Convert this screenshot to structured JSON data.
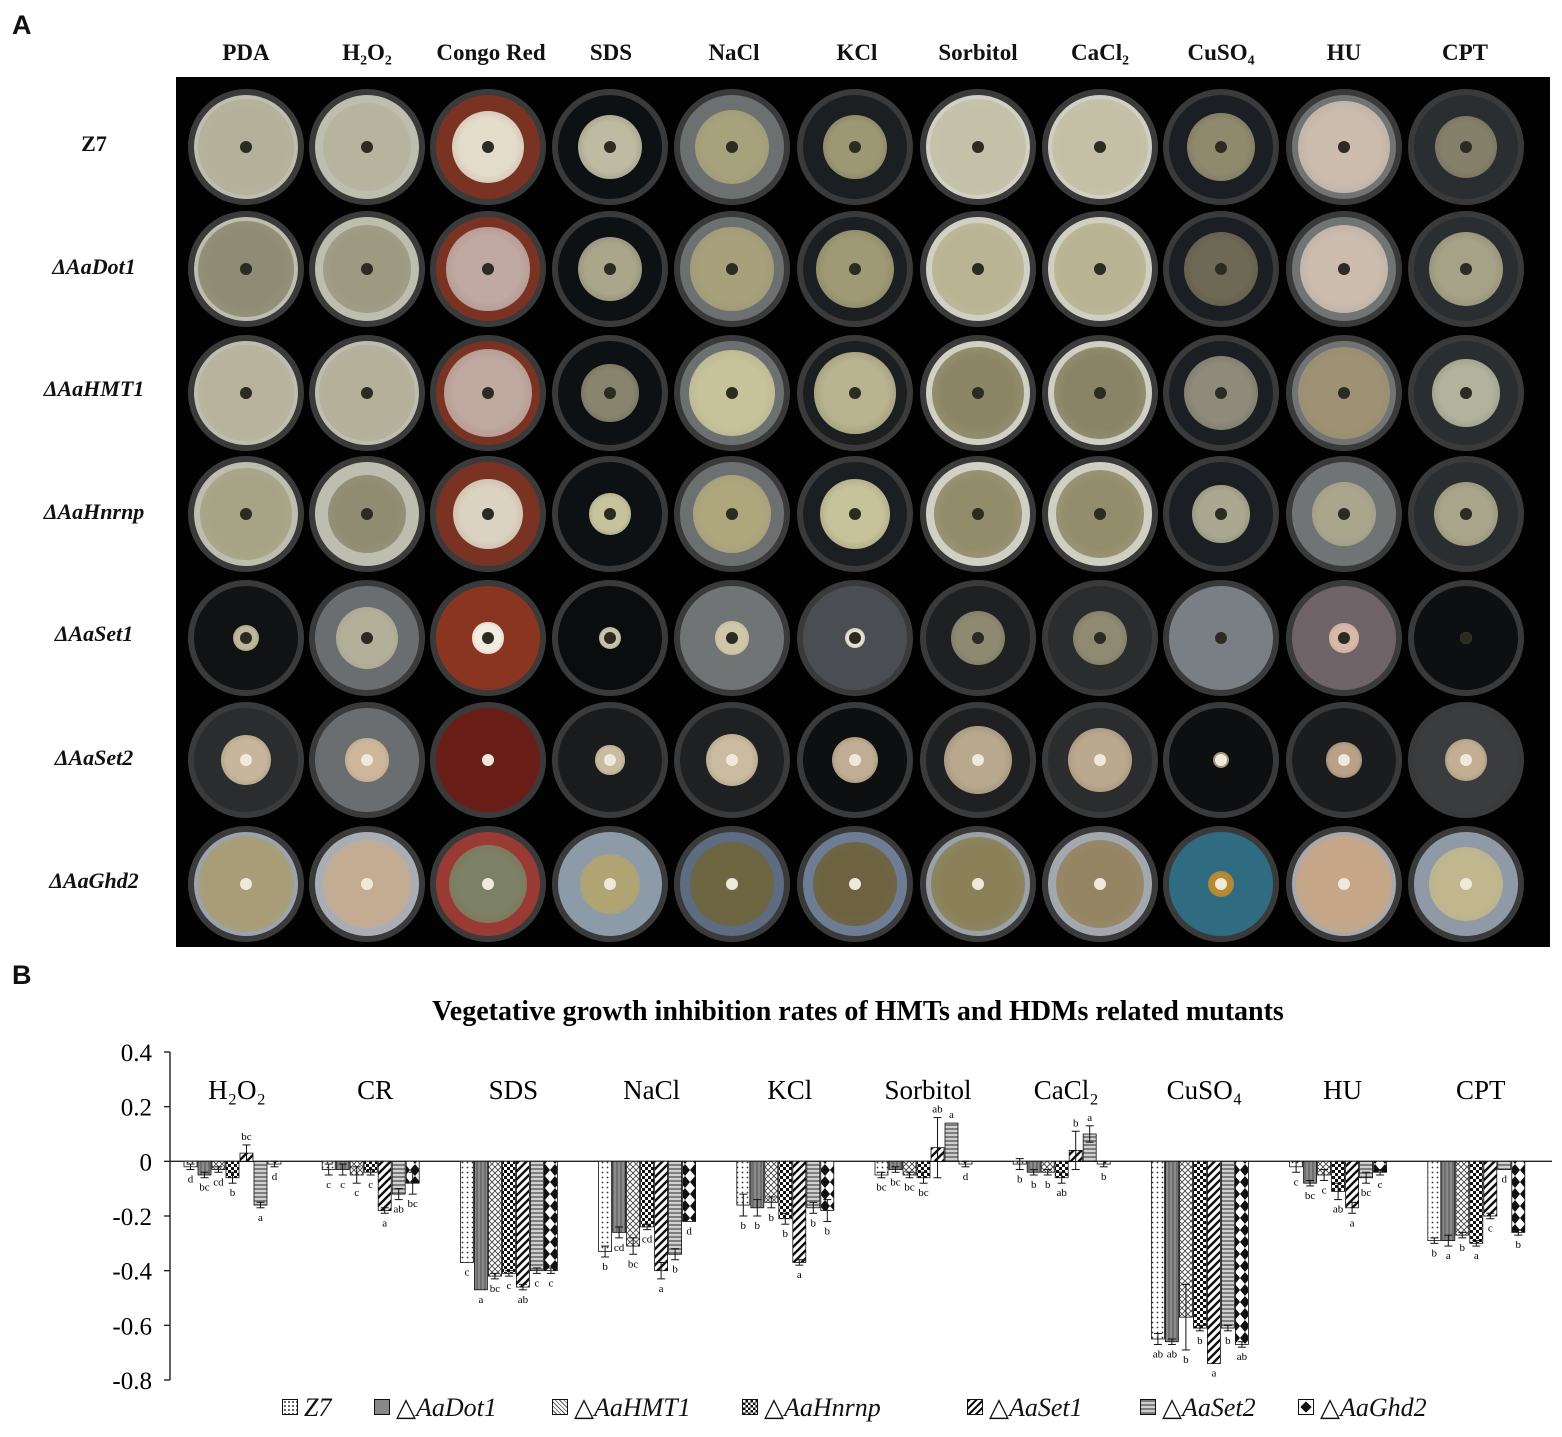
{
  "panelA": {
    "letter": "A",
    "columns": [
      {
        "label": "PDA"
      },
      {
        "label": "H₂O₂"
      },
      {
        "label": "Congo Red"
      },
      {
        "label": "SDS"
      },
      {
        "label": "NaCl"
      },
      {
        "label": "KCl"
      },
      {
        "label": "Sorbitol"
      },
      {
        "label": "CaCl₂"
      },
      {
        "label": "CuSO₄"
      },
      {
        "label": "HU"
      },
      {
        "label": "CPT"
      }
    ],
    "rows": [
      {
        "label": "Z7"
      },
      {
        "label": "ΔAaDot1"
      },
      {
        "label": "ΔAaHMT1"
      },
      {
        "label": "ΔAaHnrnp"
      },
      {
        "label": "ΔAaSet1"
      },
      {
        "label": "ΔAaSet2"
      },
      {
        "label": "ΔAaGhd2"
      }
    ]
  },
  "panelB": {
    "letter": "B",
    "legend": [
      {
        "label": "Z7",
        "pattern": "dots"
      },
      {
        "label": "△AaDot1",
        "pattern": "gray"
      },
      {
        "label": "△AaHMT1",
        "pattern": "cross"
      },
      {
        "label": "△AaHnrnp",
        "pattern": "check"
      },
      {
        "label": "△AaSet1",
        "pattern": "diag"
      },
      {
        "label": "△AaSet2",
        "pattern": "hlines"
      },
      {
        "label": "△AaGhd2",
        "pattern": "diamond"
      }
    ]
  },
  "chart_data": {
    "type": "bar",
    "title": "Vegetative growth inhibition rates of HMTs and HDMs related mutants",
    "xlabel": "",
    "ylabel": "",
    "ylim": [
      -0.8,
      0.4
    ],
    "yticks": [
      "0.4",
      "0.2",
      "0",
      "-0.2",
      "-0.4",
      "-0.6",
      "-0.8"
    ],
    "categories": [
      "H₂O₂",
      "CR",
      "SDS",
      "NaCl",
      "KCl",
      "Sorbitol",
      "CaCl₂",
      "CuSO₄",
      "HU",
      "CPT"
    ],
    "series": [
      {
        "name": "Z7",
        "values": [
          -0.02,
          -0.03,
          -0.37,
          -0.33,
          -0.16,
          -0.05,
          -0.01,
          -0.65,
          -0.02,
          -0.29
        ],
        "errors": [
          0.01,
          0.02,
          0.0,
          0.02,
          0.04,
          0.01,
          0.02,
          0.02,
          0.02,
          0.01
        ],
        "letters": [
          "d",
          "c",
          "c",
          "b",
          "b",
          "bc",
          "b",
          "ab",
          "c",
          "b"
        ]
      },
      {
        "name": "△AaDot1",
        "values": [
          -0.05,
          -0.03,
          -0.47,
          -0.26,
          -0.17,
          -0.03,
          -0.04,
          -0.66,
          -0.08,
          -0.29
        ],
        "errors": [
          0.01,
          0.02,
          0.0,
          0.02,
          0.03,
          0.01,
          0.01,
          0.01,
          0.01,
          0.02
        ],
        "letters": [
          "bc",
          "c",
          "a",
          "cd",
          "b",
          "bc",
          "b",
          "ab",
          "bc",
          "a"
        ]
      },
      {
        "name": "△AaHMT1",
        "values": [
          -0.03,
          -0.05,
          -0.42,
          -0.31,
          -0.15,
          -0.05,
          -0.04,
          -0.57,
          -0.05,
          -0.27
        ],
        "errors": [
          0.01,
          0.03,
          0.01,
          0.03,
          0.02,
          0.01,
          0.01,
          0.12,
          0.02,
          0.01
        ],
        "letters": [
          "cd",
          "c",
          "bc",
          "bc",
          "b",
          "bc",
          "b",
          "b",
          "c",
          "b"
        ]
      },
      {
        "name": "△AaHnrnp",
        "values": [
          -0.06,
          -0.04,
          -0.41,
          -0.24,
          -0.21,
          -0.06,
          -0.06,
          -0.61,
          -0.11,
          -0.3
        ],
        "errors": [
          0.02,
          0.01,
          0.01,
          0.01,
          0.02,
          0.02,
          0.02,
          0.01,
          0.03,
          0.01
        ],
        "letters": [
          "b",
          "c",
          "c",
          "cd",
          "b",
          "bc",
          "ab",
          "b",
          "ab",
          "a"
        ]
      },
      {
        "name": "△AaSet1",
        "values": [
          0.03,
          -0.18,
          -0.46,
          -0.4,
          -0.37,
          0.05,
          0.04,
          -0.74,
          -0.17,
          -0.2
        ],
        "errors": [
          0.03,
          0.01,
          0.01,
          0.03,
          0.01,
          0.11,
          0.07,
          0.0,
          0.02,
          0.01
        ],
        "letters": [
          "bc",
          "a",
          "ab",
          "a",
          "a",
          "ab",
          "b",
          "a",
          "a",
          "c"
        ]
      },
      {
        "name": "△AaSet2",
        "values": [
          -0.16,
          -0.12,
          -0.4,
          -0.34,
          -0.17,
          0.14,
          0.1,
          -0.61,
          -0.06,
          -0.03
        ],
        "errors": [
          0.01,
          0.02,
          0.01,
          0.02,
          0.02,
          0.0,
          0.03,
          0.01,
          0.02,
          0.0
        ],
        "letters": [
          "a",
          "ab",
          "c",
          "b",
          "b",
          "a",
          "a",
          "b",
          "bc",
          "d"
        ]
      },
      {
        "name": "△AaGhd2",
        "values": [
          -0.01,
          -0.08,
          -0.4,
          -0.22,
          -0.18,
          -0.01,
          -0.01,
          -0.67,
          -0.04,
          -0.26
        ],
        "errors": [
          0.01,
          0.04,
          0.01,
          0.0,
          0.04,
          0.01,
          0.01,
          0.01,
          0.01,
          0.01
        ],
        "letters": [
          "d",
          "bc",
          "c",
          "d",
          "b",
          "d",
          "b",
          "ab",
          "c",
          "b"
        ]
      }
    ],
    "grid": false,
    "legend_position": "bottom"
  }
}
